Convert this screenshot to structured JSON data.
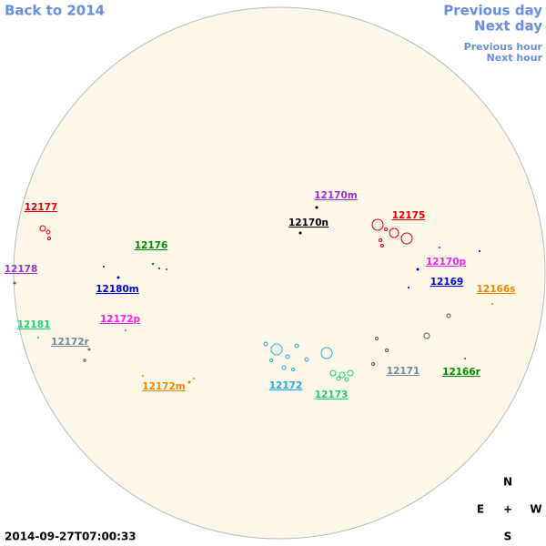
{
  "navigation": {
    "back": "Back to 2014",
    "previous_day": "Previous day",
    "next_day": "Next day",
    "previous_hour": "Previous hour",
    "next_hour": "Next hour"
  },
  "regions": [
    {
      "label": "12177",
      "color": "#dd0000"
    },
    {
      "label": "12178",
      "color": "#9933cc"
    },
    {
      "label": "12181",
      "color": "#22cc77"
    },
    {
      "label": "12172r",
      "color": "#778899"
    },
    {
      "label": "12176",
      "color": "#008800"
    },
    {
      "label": "12180m",
      "color": "#0000cc"
    },
    {
      "label": "12172p",
      "color": "#ee22ee"
    },
    {
      "label": "12172m",
      "color": "#ee8800"
    },
    {
      "label": "12170m",
      "color": "#9933cc"
    },
    {
      "label": "12170n",
      "color": "#000000"
    },
    {
      "label": "12175",
      "color": "#dd0000"
    },
    {
      "label": "12170p",
      "color": "#ee22ee"
    },
    {
      "label": "12169",
      "color": "#0000cc"
    },
    {
      "label": "12166s",
      "color": "#ee8800"
    },
    {
      "label": "12172",
      "color": "#22aadd"
    },
    {
      "label": "12173",
      "color": "#22cc77"
    },
    {
      "label": "12171",
      "color": "#778899"
    },
    {
      "label": "12166r",
      "color": "#008800"
    }
  ],
  "timestamp": "2014-09-27T07:00:33",
  "compass": {
    "north": "N",
    "east": "E",
    "center": "+",
    "west": "W",
    "south": "S"
  }
}
